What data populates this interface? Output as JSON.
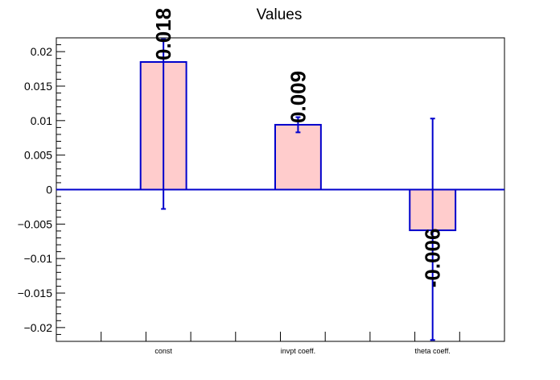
{
  "chart_data": {
    "type": "bar",
    "title": "Values",
    "categories": [
      "const",
      "invpt coeff.",
      "theta coeff."
    ],
    "values": [
      0.0185,
      0.0094,
      -0.0059
    ],
    "errors": [
      {
        "low": -0.0028,
        "high": 0.0218
      },
      {
        "low": 0.0083,
        "high": 0.0105
      },
      {
        "low": -0.0218,
        "high": 0.0103
      }
    ],
    "data_labels": [
      "0.018",
      "0.009",
      "-0.006"
    ],
    "ylim": [
      -0.022,
      0.022
    ],
    "yticks": [
      0.02,
      0.015,
      0.01,
      0.005,
      0,
      -0.005,
      -0.01,
      -0.015,
      -0.02
    ],
    "ytick_labels": [
      "0.02",
      "0.015",
      "0.01",
      "0.005",
      "0",
      "−0.005",
      "−0.01",
      "−0.015",
      "−0.02"
    ],
    "xlabel": "",
    "ylabel": "",
    "grid": false,
    "bar_fill": "#ffcccc",
    "bar_edge": "#0000cc",
    "axis_color": "#000000"
  }
}
